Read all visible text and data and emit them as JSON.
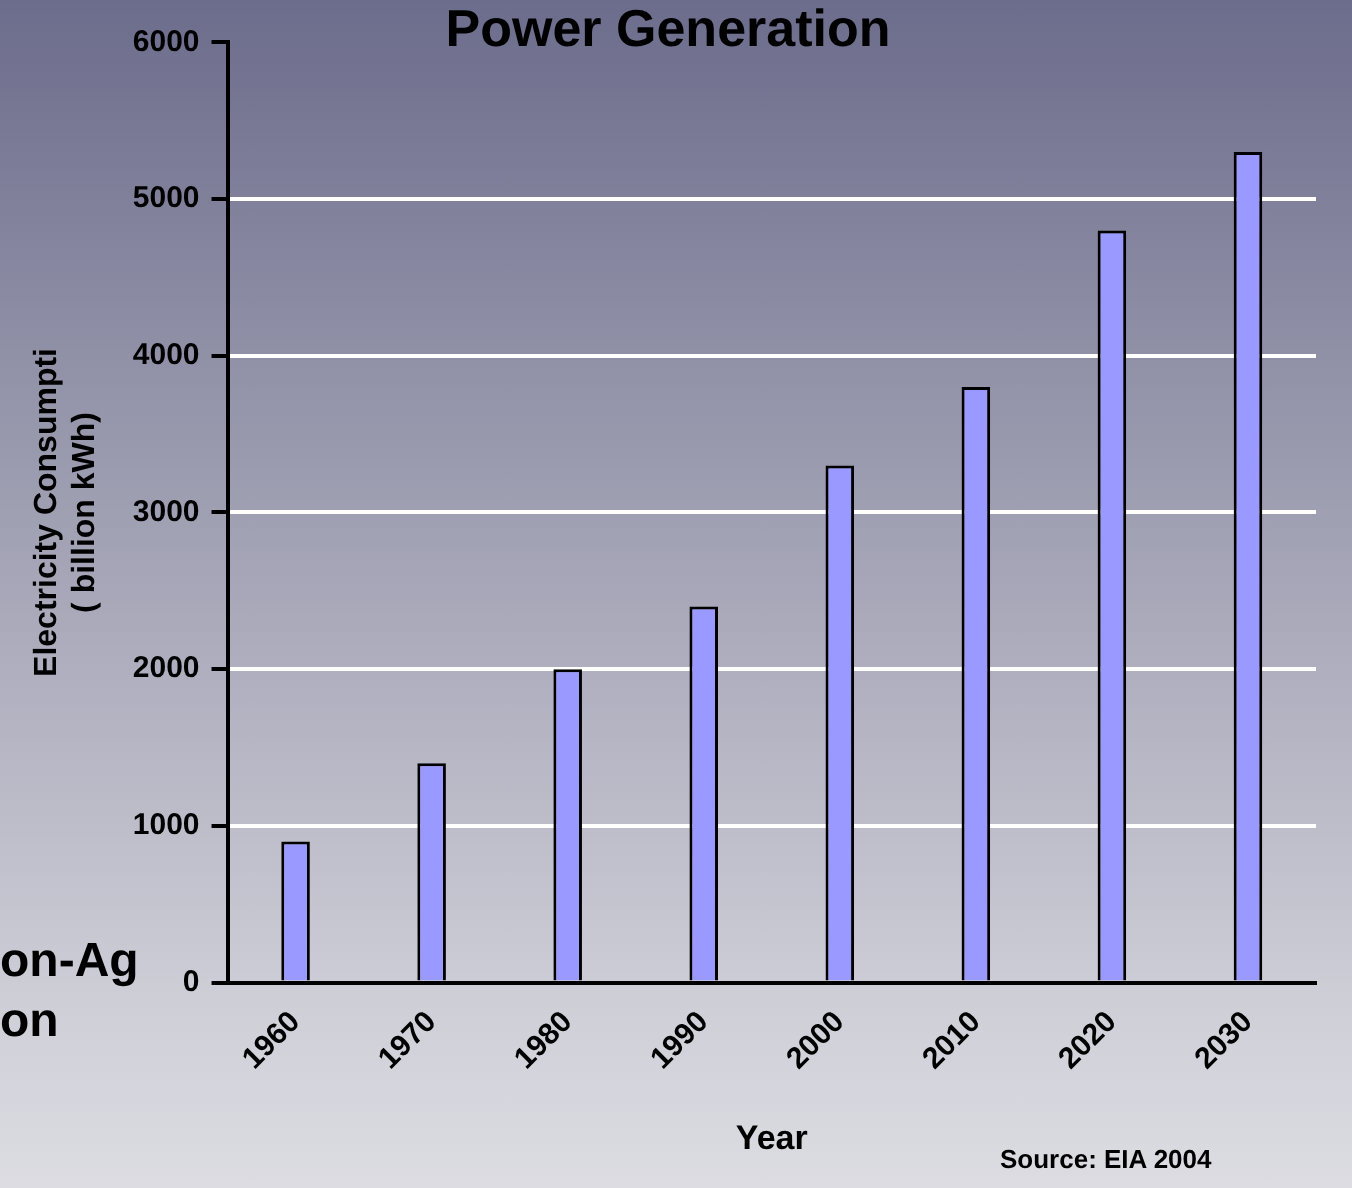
{
  "chart_data": {
    "type": "bar",
    "title": "Power Generation",
    "xlabel": "Year",
    "ylabel": "Electricity Consumpti\n( billion kWh)",
    "categories": [
      "1960",
      "1970",
      "1980",
      "1990",
      "2000",
      "2010",
      "2020",
      "2030"
    ],
    "values": [
      900,
      1400,
      2000,
      2400,
      3300,
      3800,
      4800,
      5300
    ],
    "color": "#9999ff",
    "ylim": [
      0,
      6000
    ],
    "yticks": [
      0,
      1000,
      2000,
      3000,
      4000,
      5000,
      6000
    ],
    "grid": "y",
    "annotations": [
      "on-Ag\non",
      "Source: EIA 2004"
    ]
  }
}
